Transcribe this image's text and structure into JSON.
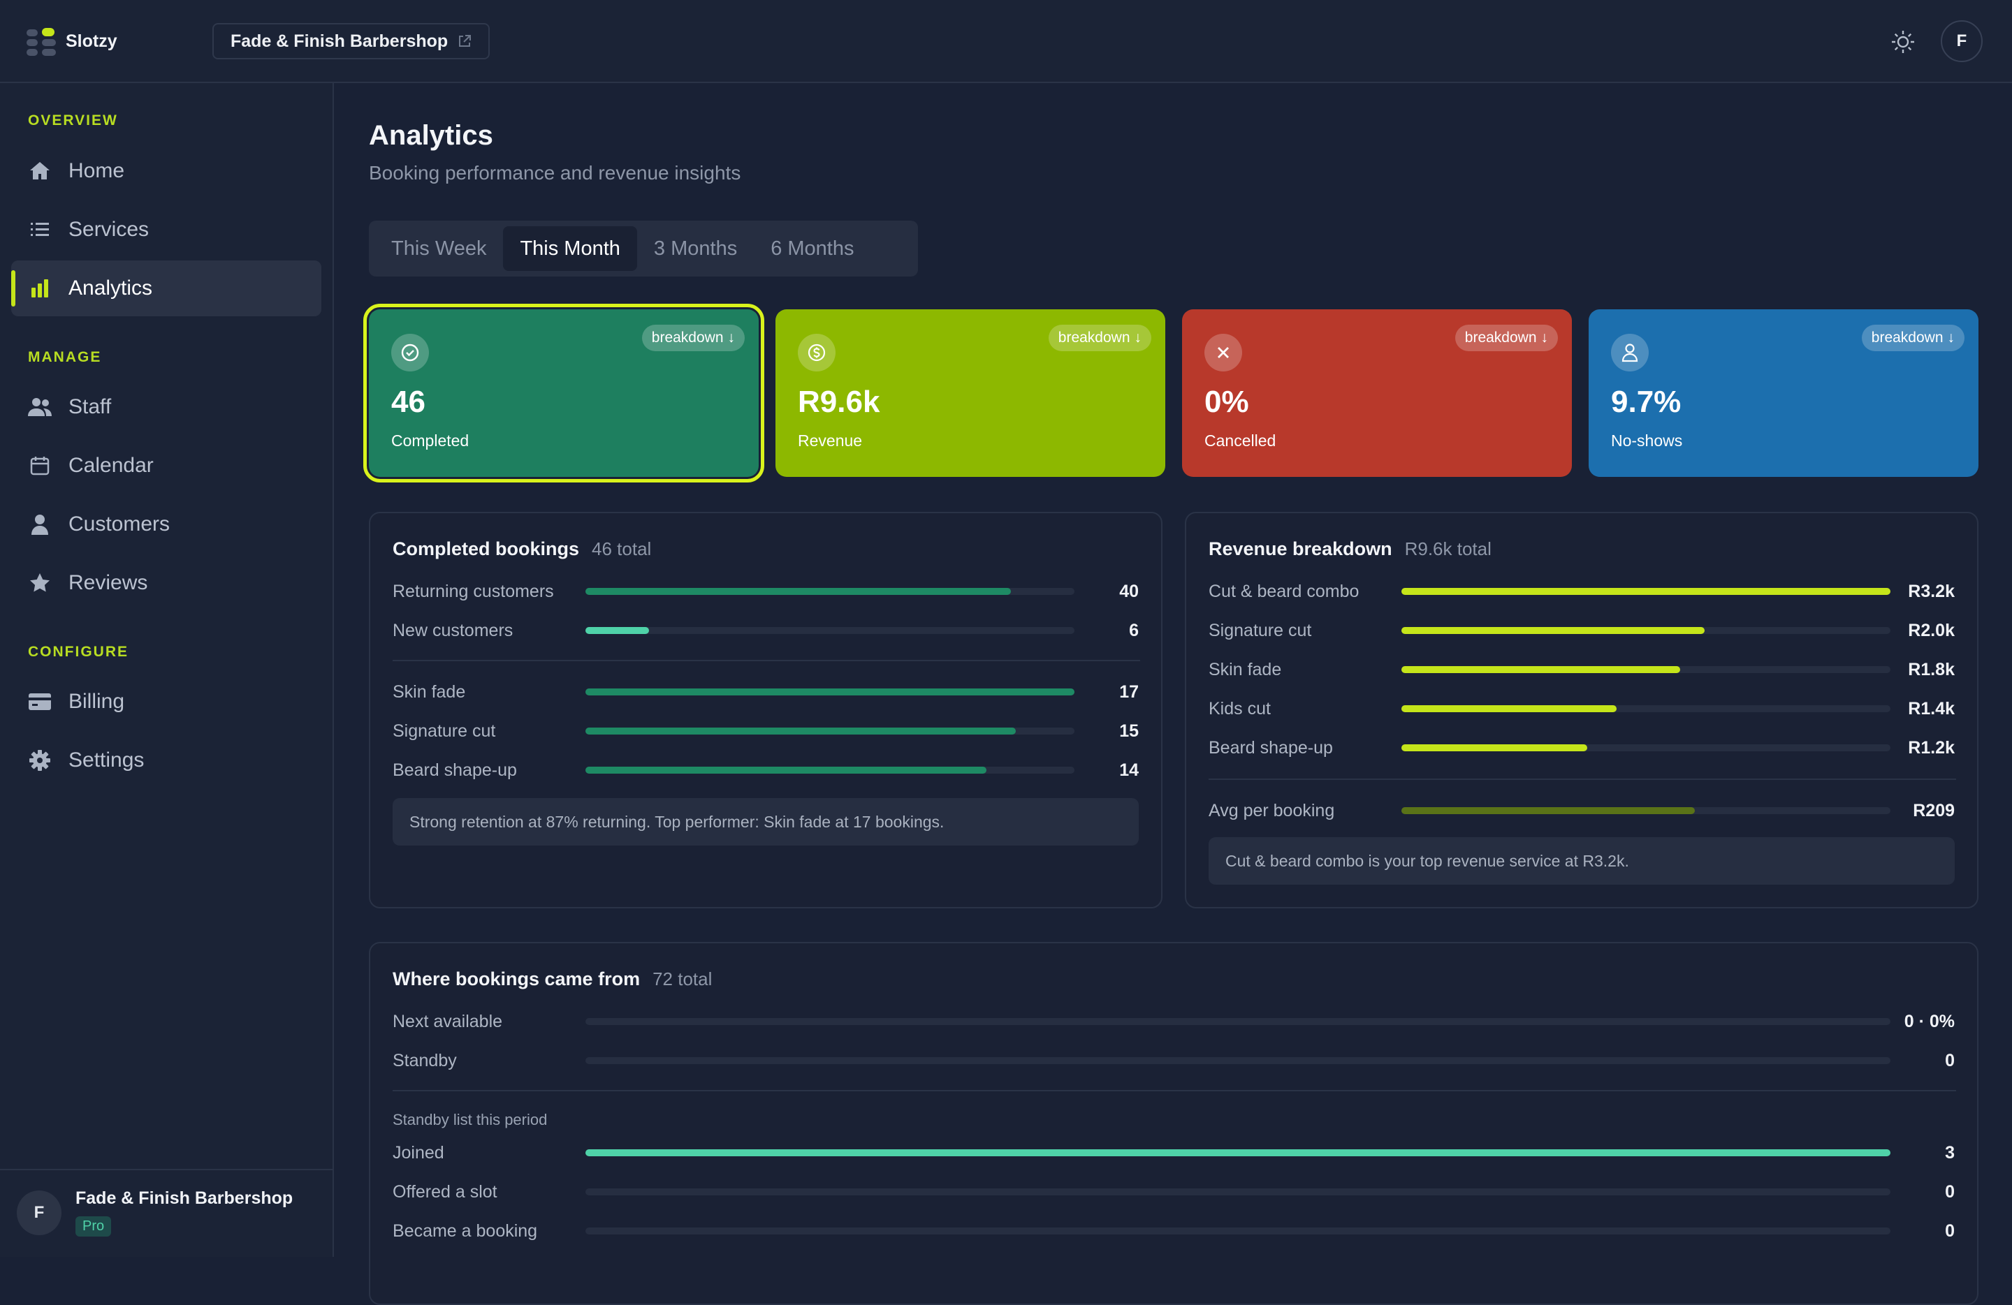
{
  "header": {
    "app_name": "Slotzy",
    "shop_name": "Fade & Finish Barbershop",
    "avatar_initial": "F"
  },
  "sidebar": {
    "sections": {
      "overview": "OVERVIEW",
      "manage": "MANAGE",
      "configure": "CONFIGURE"
    },
    "items": [
      {
        "label": "Home",
        "icon": "home-icon"
      },
      {
        "label": "Services",
        "icon": "list-icon"
      },
      {
        "label": "Analytics",
        "icon": "bar-chart-icon",
        "active": true
      },
      {
        "label": "Staff",
        "icon": "users-icon"
      },
      {
        "label": "Calendar",
        "icon": "calendar-icon"
      },
      {
        "label": "Customers",
        "icon": "user-icon"
      },
      {
        "label": "Reviews",
        "icon": "star-icon"
      },
      {
        "label": "Billing",
        "icon": "credit-card-icon"
      },
      {
        "label": "Settings",
        "icon": "gear-icon"
      }
    ],
    "footer": {
      "initial": "F",
      "name": "Fade & Finish Barbershop",
      "plan": "Pro"
    }
  },
  "page": {
    "title": "Analytics",
    "subtitle": "Booking performance and revenue insights",
    "tabs": [
      "This Week",
      "This Month",
      "3 Months",
      "6 Months"
    ],
    "active_tab": "This Month"
  },
  "stats": [
    {
      "value": "46",
      "label": "Completed",
      "breakdown": "breakdown",
      "color": "#1e7f5f",
      "icon": "check-circle-icon",
      "selected": true
    },
    {
      "value": "R9.6k",
      "label": "Revenue",
      "breakdown": "breakdown",
      "color": "#8db800",
      "icon": "dollar-circle-icon"
    },
    {
      "value": "0%",
      "label": "Cancelled",
      "breakdown": "breakdown",
      "color": "#b8392b",
      "icon": "x-icon"
    },
    {
      "value": "9.7%",
      "label": "No-shows",
      "breakdown": "breakdown",
      "color": "#1c6fae",
      "icon": "user-outline-icon"
    }
  ],
  "completed_panel": {
    "title": "Completed bookings",
    "total": "46 total",
    "customer_rows": [
      {
        "label": "Returning customers",
        "value": "40",
        "fraction": 0.87
      },
      {
        "label": "New customers",
        "value": "6",
        "fraction": 0.13
      }
    ],
    "service_rows": [
      {
        "label": "Skin fade",
        "value": "17",
        "fraction": 1.0
      },
      {
        "label": "Signature cut",
        "value": "15",
        "fraction": 0.88
      },
      {
        "label": "Beard shape-up",
        "value": "14",
        "fraction": 0.82
      }
    ],
    "note": "Strong retention at 87% returning. Top performer: Skin fade at 17 bookings."
  },
  "revenue_panel": {
    "title": "Revenue breakdown",
    "total": "R9.6k total",
    "rows": [
      {
        "label": "Cut & beard combo",
        "value": "R3.2k",
        "fraction": 1.0
      },
      {
        "label": "Signature cut",
        "value": "R2.0k",
        "fraction": 0.62
      },
      {
        "label": "Skin fade",
        "value": "R1.8k",
        "fraction": 0.57
      },
      {
        "label": "Kids cut",
        "value": "R1.4k",
        "fraction": 0.44
      },
      {
        "label": "Beard shape-up",
        "value": "R1.2k",
        "fraction": 0.38
      }
    ],
    "avg": {
      "label": "Avg per booking",
      "value": "R209",
      "fraction": 0.6
    },
    "note": "Cut & beard combo is your top revenue service at R3.2k."
  },
  "sources_panel": {
    "title": "Where bookings came from",
    "total": "72 total",
    "rows": [
      {
        "label": "Next available",
        "value": "0 · 0%",
        "fraction": 0
      },
      {
        "label": "Standby",
        "value": "0",
        "fraction": 0
      }
    ],
    "standby_label": "Standby list this period",
    "standby_rows": [
      {
        "label": "Joined",
        "value": "3",
        "fraction": 1.0
      },
      {
        "label": "Offered a slot",
        "value": "0",
        "fraction": 0
      },
      {
        "label": "Became a booking",
        "value": "0",
        "fraction": 0
      }
    ]
  },
  "colors": {
    "accent": "#c5e51a",
    "completed_bar": "#1e8a64",
    "new_customer_bar": "#4fd2a8",
    "revenue_bar": "#c5e51a",
    "avg_bar": "#5a7318",
    "joined_bar": "#4fd2a8"
  }
}
